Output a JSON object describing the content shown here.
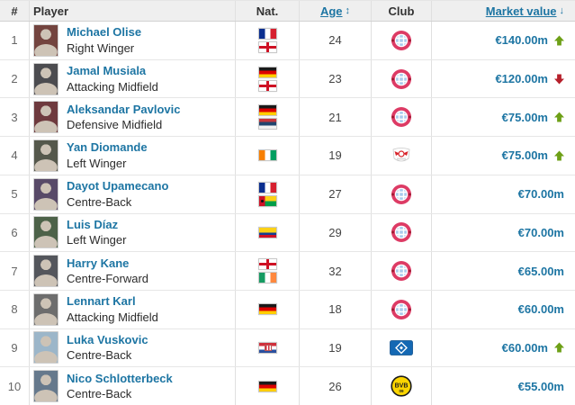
{
  "table": {
    "columns": {
      "rank": "#",
      "player": "Player",
      "nat": "Nat.",
      "age": "Age",
      "club": "Club",
      "market_value": "Market value"
    },
    "sort_icons": {
      "age": "↕",
      "market_value": "↓"
    },
    "rows": [
      {
        "rank": "1",
        "name": "Michael Olise",
        "position": "Right Winger",
        "nationalities": [
          "France",
          "England"
        ],
        "age": "24",
        "club": "Bayern Munich",
        "club_key": "bayern",
        "market_value": "€140.00m",
        "trend": "up",
        "photo_tone": "#73443f"
      },
      {
        "rank": "2",
        "name": "Jamal Musiala",
        "position": "Attacking Midfield",
        "nationalities": [
          "Germany",
          "England"
        ],
        "age": "23",
        "club": "Bayern Munich",
        "club_key": "bayern",
        "market_value": "€120.00m",
        "trend": "down",
        "photo_tone": "#4c4c50"
      },
      {
        "rank": "3",
        "name": "Aleksandar Pavlovic",
        "position": "Defensive Midfield",
        "nationalities": [
          "Germany",
          "Serbia"
        ],
        "age": "21",
        "club": "Bayern Munich",
        "club_key": "bayern",
        "market_value": "€75.00m",
        "trend": "up",
        "photo_tone": "#6e3a3e"
      },
      {
        "rank": "4",
        "name": "Yan Diomande",
        "position": "Left Winger",
        "nationalities": [
          "Ivory Coast"
        ],
        "age": "19",
        "club": "RB Leipzig",
        "club_key": "leipzig",
        "market_value": "€75.00m",
        "trend": "up",
        "photo_tone": "#55584c"
      },
      {
        "rank": "5",
        "name": "Dayot Upamecano",
        "position": "Centre-Back",
        "nationalities": [
          "France",
          "Guinea-Bissau"
        ],
        "age": "27",
        "club": "Bayern Munich",
        "club_key": "bayern",
        "market_value": "€70.00m",
        "trend": "none",
        "photo_tone": "#584a68"
      },
      {
        "rank": "6",
        "name": "Luis Díaz",
        "position": "Left Winger",
        "nationalities": [
          "Colombia"
        ],
        "age": "29",
        "club": "Bayern Munich",
        "club_key": "bayern",
        "market_value": "€70.00m",
        "trend": "none",
        "photo_tone": "#4d6249"
      },
      {
        "rank": "7",
        "name": "Harry Kane",
        "position": "Centre-Forward",
        "nationalities": [
          "England",
          "Ireland"
        ],
        "age": "32",
        "club": "Bayern Munich",
        "club_key": "bayern",
        "market_value": "€65.00m",
        "trend": "none",
        "photo_tone": "#54565c"
      },
      {
        "rank": "8",
        "name": "Lennart Karl",
        "position": "Attacking Midfield",
        "nationalities": [
          "Germany"
        ],
        "age": "18",
        "club": "Bayern Munich",
        "club_key": "bayern",
        "market_value": "€60.00m",
        "trend": "none",
        "photo_tone": "#6d6d6d"
      },
      {
        "rank": "9",
        "name": "Luka Vuskovic",
        "position": "Centre-Back",
        "nationalities": [
          "Croatia"
        ],
        "age": "19",
        "club": "Hamburger SV",
        "club_key": "hsv",
        "market_value": "€60.00m",
        "trend": "up",
        "photo_tone": "#9cb6c9"
      },
      {
        "rank": "10",
        "name": "Nico Schlotterbeck",
        "position": "Centre-Back",
        "nationalities": [
          "Germany"
        ],
        "age": "26",
        "club": "Borussia Dortmund",
        "club_key": "bvb",
        "market_value": "€55.00m",
        "trend": "none",
        "photo_tone": "#66798c"
      }
    ]
  },
  "colors": {
    "link": "#1d75a3",
    "trend_up": "#6ea017",
    "trend_down": "#b6202b",
    "header_bg": "#efefef"
  }
}
